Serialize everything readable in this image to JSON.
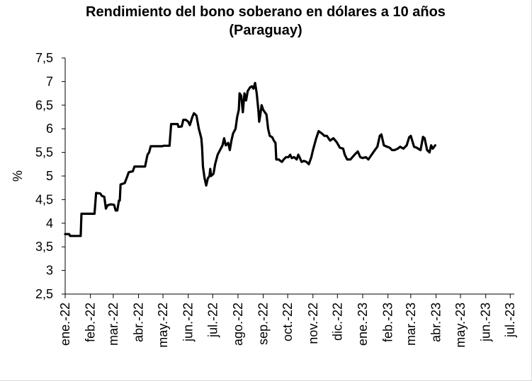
{
  "chart_data": {
    "type": "line",
    "title": "Rendimiento del bono soberano en dólares a 10 años",
    "subtitle": "(Paraguay)",
    "ylabel": "%",
    "xlabel": "",
    "ylim": [
      2.5,
      7.5
    ],
    "y_ticks": [
      2.5,
      3,
      3.5,
      4,
      4.5,
      5,
      5.5,
      6,
      6.5,
      7,
      7.5
    ],
    "y_tick_labels": [
      "2,5",
      "3",
      "3,5",
      "4",
      "4,5",
      "5",
      "5,5",
      "6",
      "6,5",
      "7",
      "7,5"
    ],
    "x_start": "2022-01-01",
    "x_end": "2023-07-06",
    "x_tick_dates": [
      "2022-01-01",
      "2022-02-01",
      "2022-03-01",
      "2022-04-01",
      "2022-05-01",
      "2022-06-01",
      "2022-07-01",
      "2022-08-01",
      "2022-09-01",
      "2022-10-01",
      "2022-11-01",
      "2022-12-01",
      "2023-01-01",
      "2023-02-01",
      "2023-03-01",
      "2023-04-01",
      "2023-05-01",
      "2023-06-01",
      "2023-07-01"
    ],
    "x_tick_labels": [
      "ene.-22",
      "feb.-22",
      "mar.-22",
      "abr.-22",
      "may.-22",
      "jun.-22",
      "jul.-22",
      "ago.-22",
      "sep.-22",
      "oct.-22",
      "nov.-22",
      "dic.-22",
      "ene.-23",
      "feb.-23",
      "mar.-23",
      "abr.-23",
      "may.-23",
      "jun.-23",
      "jul.-23"
    ],
    "grid": false,
    "legend": "none",
    "series": [
      {
        "line_color": "#000000",
        "points": [
          [
            "2022-01-01",
            3.77
          ],
          [
            "2022-01-06",
            3.77
          ],
          [
            "2022-01-07",
            3.73
          ],
          [
            "2022-01-20",
            3.73
          ],
          [
            "2022-01-21",
            4.2
          ],
          [
            "2022-02-06",
            4.2
          ],
          [
            "2022-02-08",
            4.64
          ],
          [
            "2022-02-13",
            4.63
          ],
          [
            "2022-02-15",
            4.58
          ],
          [
            "2022-02-18",
            4.56
          ],
          [
            "2022-02-20",
            4.31
          ],
          [
            "2022-02-22",
            4.38
          ],
          [
            "2022-02-26",
            4.4
          ],
          [
            "2022-03-02",
            4.39
          ],
          [
            "2022-03-04",
            4.27
          ],
          [
            "2022-03-06",
            4.27
          ],
          [
            "2022-03-08",
            4.48
          ],
          [
            "2022-03-09",
            4.48
          ],
          [
            "2022-03-10",
            4.82
          ],
          [
            "2022-03-15",
            4.85
          ],
          [
            "2022-03-18",
            4.98
          ],
          [
            "2022-03-20",
            5.08
          ],
          [
            "2022-03-25",
            5.1
          ],
          [
            "2022-03-27",
            5.2
          ],
          [
            "2022-04-09",
            5.2
          ],
          [
            "2022-04-12",
            5.45
          ],
          [
            "2022-04-14",
            5.5
          ],
          [
            "2022-04-16",
            5.63
          ],
          [
            "2022-04-30",
            5.63
          ],
          [
            "2022-05-02",
            5.64
          ],
          [
            "2022-05-09",
            5.64
          ],
          [
            "2022-05-11",
            6.1
          ],
          [
            "2022-05-19",
            6.1
          ],
          [
            "2022-05-20",
            6.04
          ],
          [
            "2022-05-24",
            6.05
          ],
          [
            "2022-05-26",
            6.19
          ],
          [
            "2022-05-29",
            6.19
          ],
          [
            "2022-06-01",
            6.15
          ],
          [
            "2022-06-03",
            6.08
          ],
          [
            "2022-06-06",
            6.25
          ],
          [
            "2022-06-08",
            6.33
          ],
          [
            "2022-06-11",
            6.28
          ],
          [
            "2022-06-14",
            6.0
          ],
          [
            "2022-06-17",
            5.8
          ],
          [
            "2022-06-18",
            5.6
          ],
          [
            "2022-06-19",
            5.2
          ],
          [
            "2022-06-21",
            4.95
          ],
          [
            "2022-06-23",
            4.8
          ],
          [
            "2022-06-25",
            4.95
          ],
          [
            "2022-06-27",
            5.0
          ],
          [
            "2022-06-28",
            5.15
          ],
          [
            "2022-06-29",
            5.0
          ],
          [
            "2022-07-02",
            5.05
          ],
          [
            "2022-07-04",
            5.25
          ],
          [
            "2022-07-07",
            5.45
          ],
          [
            "2022-07-10",
            5.55
          ],
          [
            "2022-07-13",
            5.65
          ],
          [
            "2022-07-15",
            5.8
          ],
          [
            "2022-07-17",
            5.65
          ],
          [
            "2022-07-20",
            5.7
          ],
          [
            "2022-07-22",
            5.55
          ],
          [
            "2022-07-24",
            5.75
          ],
          [
            "2022-07-26",
            5.9
          ],
          [
            "2022-07-29",
            6.0
          ],
          [
            "2022-07-31",
            6.25
          ],
          [
            "2022-08-02",
            6.4
          ],
          [
            "2022-08-03",
            6.75
          ],
          [
            "2022-08-05",
            6.7
          ],
          [
            "2022-08-07",
            6.35
          ],
          [
            "2022-08-09",
            6.75
          ],
          [
            "2022-08-11",
            6.6
          ],
          [
            "2022-08-13",
            6.8
          ],
          [
            "2022-08-16",
            6.88
          ],
          [
            "2022-08-18",
            6.9
          ],
          [
            "2022-08-20",
            6.85
          ],
          [
            "2022-08-22",
            6.97
          ],
          [
            "2022-08-24",
            6.75
          ],
          [
            "2022-08-26",
            6.4
          ],
          [
            "2022-08-27",
            6.15
          ],
          [
            "2022-08-28",
            6.25
          ],
          [
            "2022-08-30",
            6.5
          ],
          [
            "2022-09-01",
            6.4
          ],
          [
            "2022-09-03",
            6.35
          ],
          [
            "2022-09-05",
            6.3
          ],
          [
            "2022-09-07",
            6.0
          ],
          [
            "2022-09-09",
            5.85
          ],
          [
            "2022-09-12",
            5.82
          ],
          [
            "2022-09-14",
            5.75
          ],
          [
            "2022-09-16",
            5.7
          ],
          [
            "2022-09-17",
            5.35
          ],
          [
            "2022-09-20",
            5.35
          ],
          [
            "2022-09-22",
            5.32
          ],
          [
            "2022-09-24",
            5.3
          ],
          [
            "2022-09-26",
            5.35
          ],
          [
            "2022-09-29",
            5.4
          ],
          [
            "2022-10-02",
            5.4
          ],
          [
            "2022-10-04",
            5.45
          ],
          [
            "2022-10-06",
            5.38
          ],
          [
            "2022-10-09",
            5.4
          ],
          [
            "2022-10-12",
            5.35
          ],
          [
            "2022-10-14",
            5.45
          ],
          [
            "2022-10-16",
            5.38
          ],
          [
            "2022-10-18",
            5.3
          ],
          [
            "2022-10-21",
            5.32
          ],
          [
            "2022-10-24",
            5.3
          ],
          [
            "2022-10-27",
            5.25
          ],
          [
            "2022-10-30",
            5.4
          ],
          [
            "2022-11-01",
            5.55
          ],
          [
            "2022-11-05",
            5.8
          ],
          [
            "2022-11-08",
            5.95
          ],
          [
            "2022-11-12",
            5.9
          ],
          [
            "2022-11-15",
            5.85
          ],
          [
            "2022-11-18",
            5.85
          ],
          [
            "2022-11-22",
            5.75
          ],
          [
            "2022-11-26",
            5.8
          ],
          [
            "2022-11-30",
            5.72
          ],
          [
            "2022-12-04",
            5.6
          ],
          [
            "2022-12-08",
            5.58
          ],
          [
            "2022-12-10",
            5.45
          ],
          [
            "2022-12-13",
            5.35
          ],
          [
            "2022-12-17",
            5.35
          ],
          [
            "2022-12-22",
            5.45
          ],
          [
            "2022-12-26",
            5.52
          ],
          [
            "2022-12-29",
            5.4
          ],
          [
            "2023-01-01",
            5.38
          ],
          [
            "2023-01-05",
            5.4
          ],
          [
            "2023-01-08",
            5.35
          ],
          [
            "2023-01-12",
            5.45
          ],
          [
            "2023-01-16",
            5.55
          ],
          [
            "2023-01-19",
            5.62
          ],
          [
            "2023-01-22",
            5.85
          ],
          [
            "2023-01-24",
            5.88
          ],
          [
            "2023-01-27",
            5.65
          ],
          [
            "2023-01-31",
            5.62
          ],
          [
            "2023-02-03",
            5.6
          ],
          [
            "2023-02-06",
            5.55
          ],
          [
            "2023-02-09",
            5.55
          ],
          [
            "2023-02-13",
            5.58
          ],
          [
            "2023-02-16",
            5.62
          ],
          [
            "2023-02-20",
            5.58
          ],
          [
            "2023-02-24",
            5.65
          ],
          [
            "2023-02-27",
            5.82
          ],
          [
            "2023-03-01",
            5.85
          ],
          [
            "2023-03-05",
            5.62
          ],
          [
            "2023-03-08",
            5.6
          ],
          [
            "2023-03-10",
            5.58
          ],
          [
            "2023-03-13",
            5.55
          ],
          [
            "2023-03-16",
            5.83
          ],
          [
            "2023-03-18",
            5.8
          ],
          [
            "2023-03-21",
            5.55
          ],
          [
            "2023-03-24",
            5.5
          ],
          [
            "2023-03-26",
            5.65
          ],
          [
            "2023-03-28",
            5.58
          ],
          [
            "2023-03-31",
            5.65
          ]
        ]
      }
    ]
  }
}
